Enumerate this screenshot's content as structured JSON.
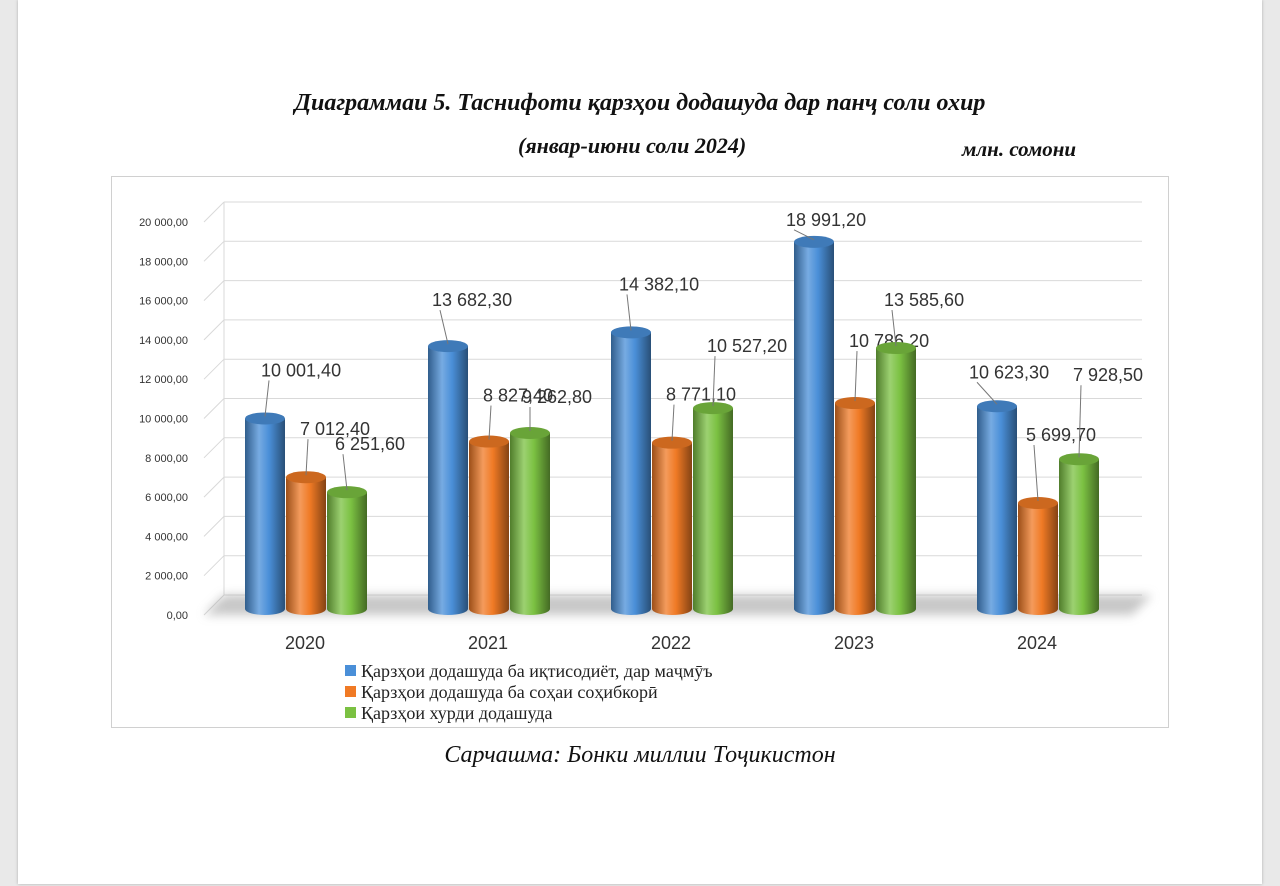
{
  "title_line1": "Диаграммаи 5. Таснифоти қарзҳои додашуда дар панҷ соли охир",
  "title_line2": "(январ-июни соли 2024)",
  "unit": "млн. сомони",
  "source": "Сарчашма: Бонки миллии Тоҷикистон",
  "chart_data": {
    "type": "bar",
    "categories": [
      "2020",
      "2021",
      "2022",
      "2023",
      "2024"
    ],
    "ylim": [
      0,
      20000
    ],
    "yticks": [
      "0,00",
      "2 000,00",
      "4 000,00",
      "6 000,00",
      "8 000,00",
      "10 000,00",
      "12 000,00",
      "14 000,00",
      "16 000,00",
      "18 000,00",
      "20 000,00"
    ],
    "grid": true,
    "legend_position": "bottom",
    "series": [
      {
        "name": "Қарзҳои додашуда ба иқтисодиёт, дар маҷмӯъ",
        "color": "#4a8fd8",
        "values": [
          10001.4,
          13682.3,
          14382.1,
          18991.2,
          10623.3
        ],
        "labels": [
          "10 001,40",
          "13 682,30",
          "14 382,10",
          "18 991,20",
          "10 623,30"
        ]
      },
      {
        "name": "Қарзҳои додашуда ба соҳаи соҳибкорӣ",
        "color": "#f07a25",
        "values": [
          7012.4,
          8827.4,
          8771.1,
          10786.2,
          5699.7
        ],
        "labels": [
          "7 012,40",
          "8 827,40",
          "8 771,10",
          "10 786,20",
          "5 699,70"
        ]
      },
      {
        "name": "Қарзҳои хурди додашуда",
        "color": "#7bc142",
        "values": [
          6251.6,
          9262.8,
          10527.2,
          13585.6,
          7928.5
        ],
        "labels": [
          "6 251,60",
          "9 262,80",
          "10 527,20",
          "13 585,60",
          "7 928,50"
        ]
      }
    ]
  }
}
